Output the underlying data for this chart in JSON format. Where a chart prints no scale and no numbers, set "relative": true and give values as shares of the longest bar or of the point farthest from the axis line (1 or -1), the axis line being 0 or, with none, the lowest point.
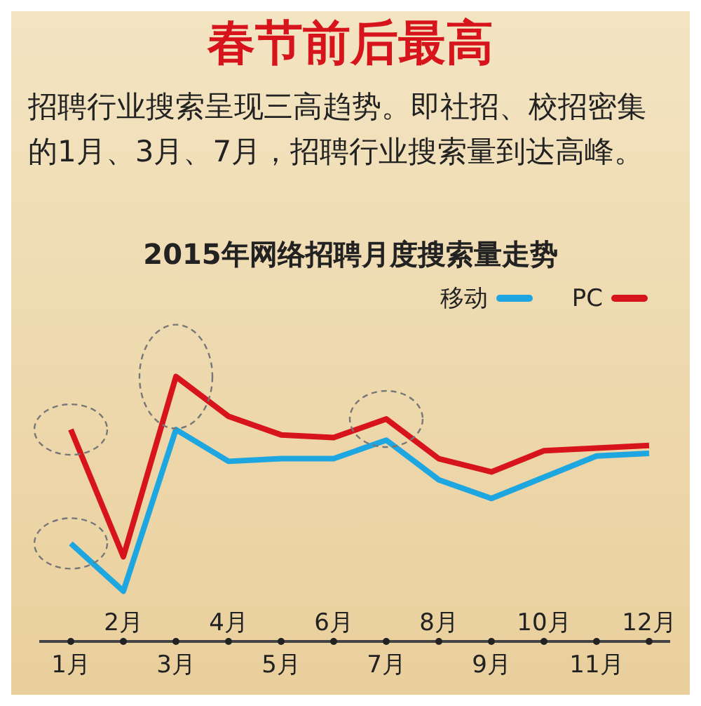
{
  "chart_data": {
    "type": "line",
    "title": "2015年网络招聘月度搜索量走势",
    "annotations": [
      "春节前后最高",
      "招聘行业搜索呈现三高趋势。即社招、校招密集的1月、3月、7月，招聘行业搜索量到达高峰。"
    ],
    "categories": [
      "1月",
      "2月",
      "3月",
      "4月",
      "5月",
      "6月",
      "7月",
      "8月",
      "9月",
      "10月",
      "11月",
      "12月"
    ],
    "relative": true,
    "legend": "top right",
    "marker": "none",
    "grid": false,
    "series": [
      {
        "name": "移动",
        "color": "#1ea6e0",
        "values": [
          0.37,
          0.19,
          0.8,
          0.68,
          0.69,
          0.69,
          0.76,
          0.61,
          0.54,
          0.62,
          0.7,
          0.71
        ]
      },
      {
        "name": "PC",
        "color": "#d7131b",
        "values": [
          0.8,
          0.32,
          1,
          0.85,
          0.78,
          0.77,
          0.84,
          0.69,
          0.64,
          0.72,
          0.73,
          0.74
        ]
      }
    ]
  }
}
